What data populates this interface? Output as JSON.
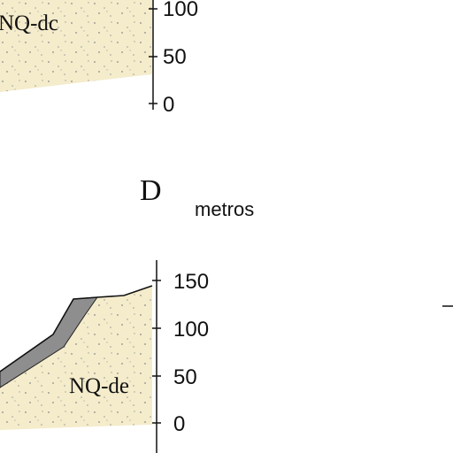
{
  "top_profile": {
    "unit_label": "NQ-dc",
    "axis_ticks": [
      "100",
      "50",
      "0"
    ],
    "fill_color": "#f4eccb"
  },
  "panel_d": {
    "letter": "D",
    "axis_unit": "metros",
    "unit_label": "NQ-de",
    "axis_ticks": [
      "150",
      "100",
      "50",
      "0"
    ],
    "fill_color": "#f4eccb",
    "layer_color": "#8e8e8e"
  }
}
